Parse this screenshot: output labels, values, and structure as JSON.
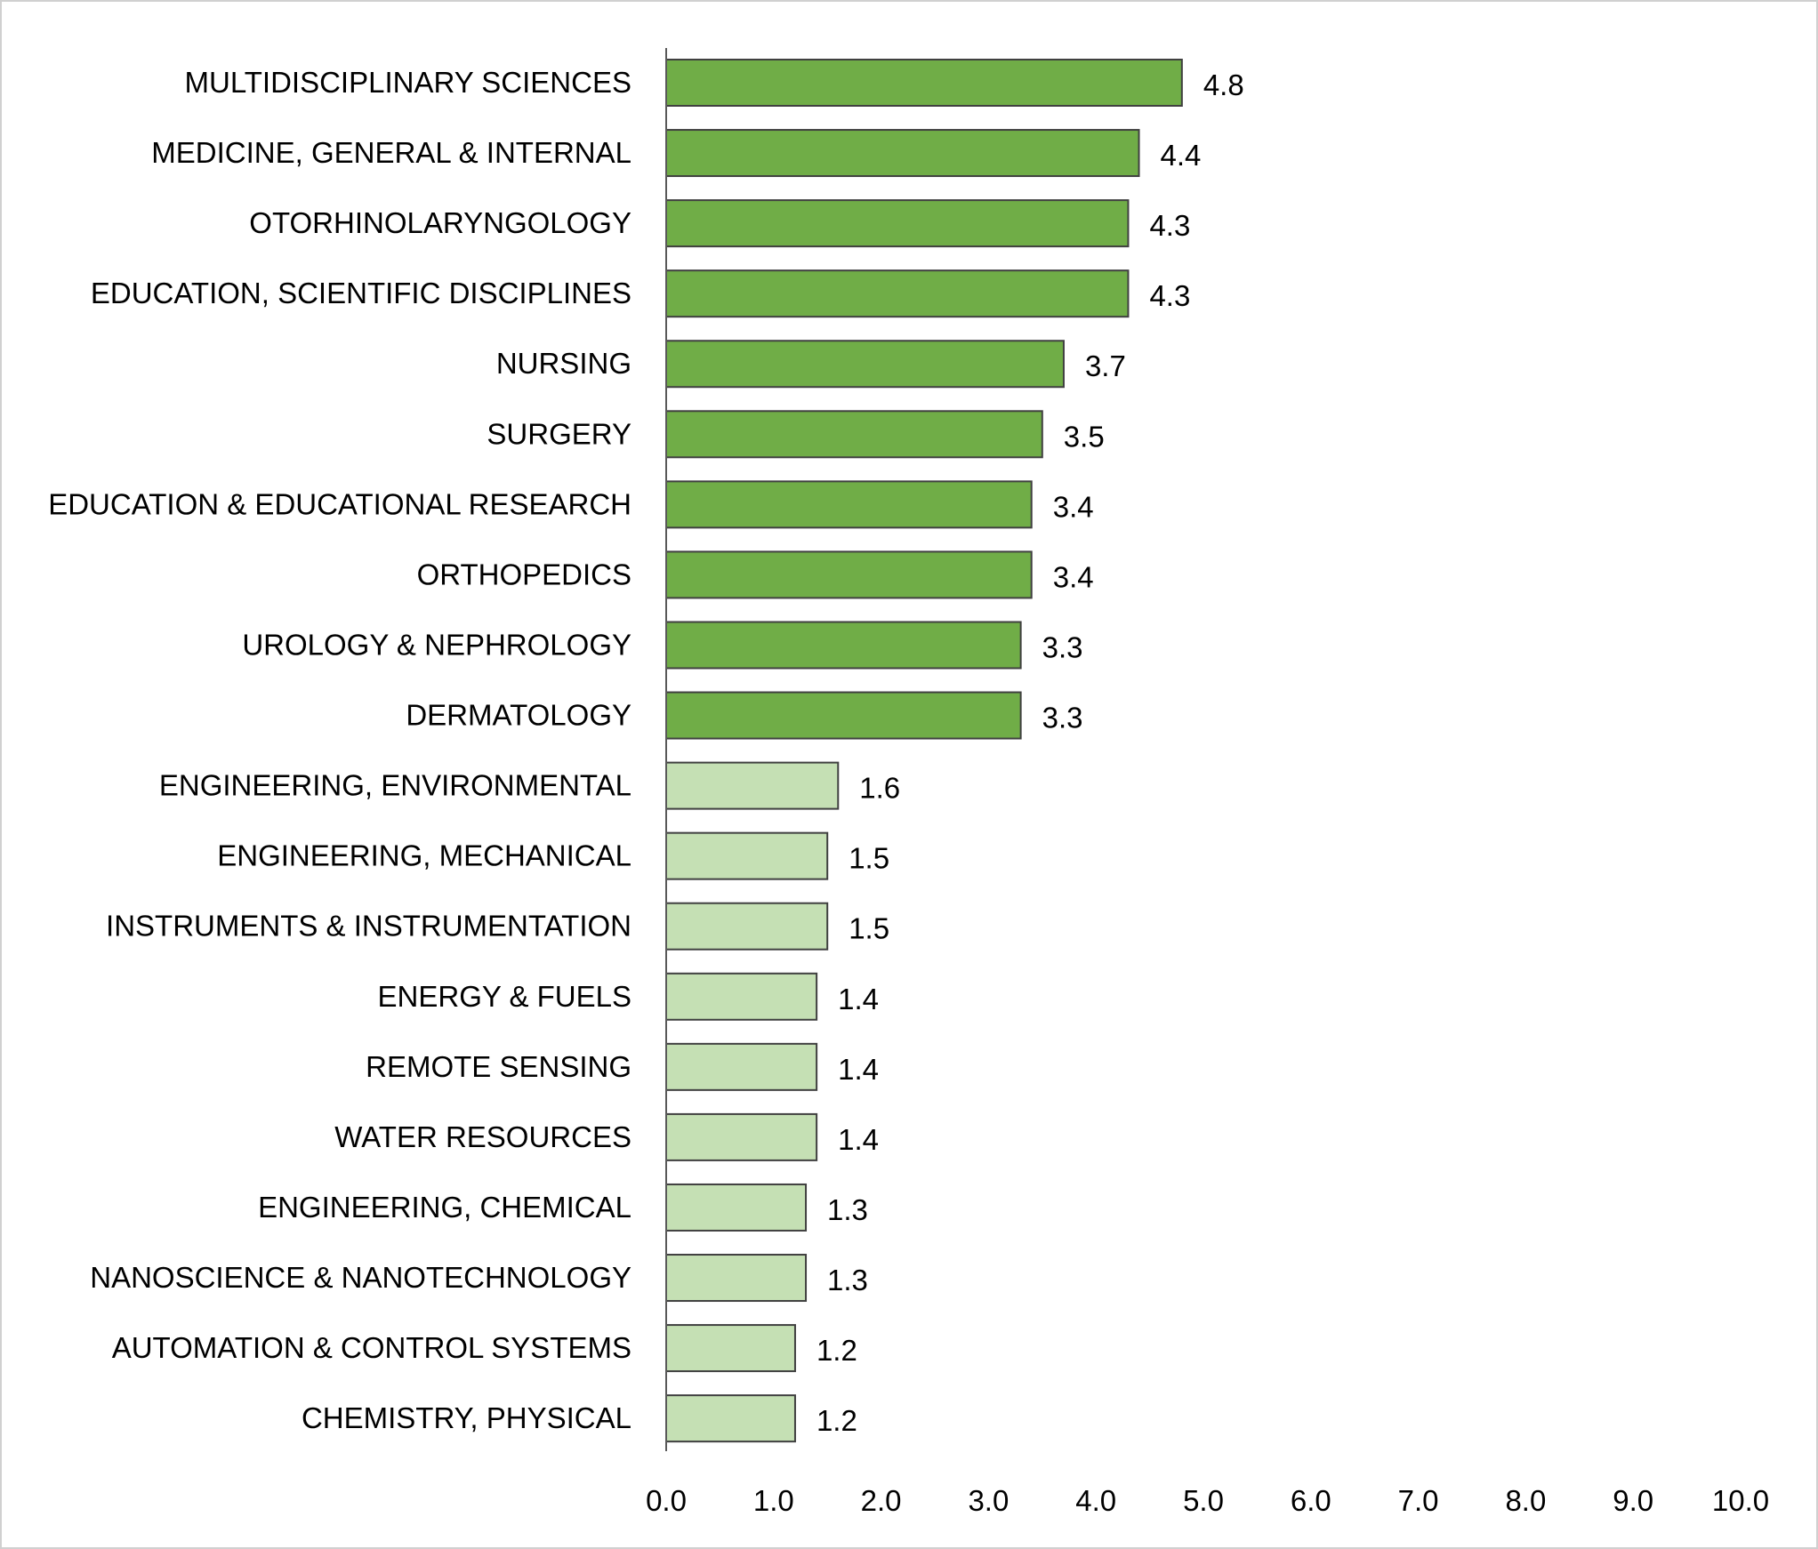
{
  "chart_data": {
    "type": "bar",
    "orientation": "horizontal",
    "title": "",
    "xlabel": "",
    "ylabel": "",
    "xlim": [
      0,
      10
    ],
    "x_ticks": [
      "0.0",
      "1.0",
      "2.0",
      "3.0",
      "4.0",
      "5.0",
      "6.0",
      "7.0",
      "8.0",
      "9.0",
      "10.0"
    ],
    "grid": false,
    "categories": [
      "MULTIDISCIPLINARY SCIENCES",
      "MEDICINE, GENERAL & INTERNAL",
      "OTORHINOLARYNGOLOGY",
      "EDUCATION, SCIENTIFIC DISCIPLINES",
      "NURSING",
      "SURGERY",
      "EDUCATION & EDUCATIONAL RESEARCH",
      "ORTHOPEDICS",
      "UROLOGY & NEPHROLOGY",
      "DERMATOLOGY",
      "ENGINEERING, ENVIRONMENTAL",
      "ENGINEERING, MECHANICAL",
      "INSTRUMENTS & INSTRUMENTATION",
      "ENERGY & FUELS",
      "REMOTE SENSING",
      "WATER RESOURCES",
      "ENGINEERING, CHEMICAL",
      "NANOSCIENCE & NANOTECHNOLOGY",
      "AUTOMATION & CONTROL SYSTEMS",
      "CHEMISTRY, PHYSICAL"
    ],
    "values": [
      4.8,
      4.4,
      4.3,
      4.3,
      3.7,
      3.5,
      3.4,
      3.4,
      3.3,
      3.3,
      1.6,
      1.5,
      1.5,
      1.4,
      1.4,
      1.4,
      1.3,
      1.3,
      1.2,
      1.2
    ],
    "value_labels": [
      "4.8",
      "4.4",
      "4.3",
      "4.3",
      "3.7",
      "3.5",
      "3.4",
      "3.4",
      "3.3",
      "3.3",
      "1.6",
      "1.5",
      "1.5",
      "1.4",
      "1.4",
      "1.4",
      "1.3",
      "1.3",
      "1.2",
      "1.2"
    ],
    "group": [
      "high",
      "high",
      "high",
      "high",
      "high",
      "high",
      "high",
      "high",
      "high",
      "high",
      "low",
      "low",
      "low",
      "low",
      "low",
      "low",
      "low",
      "low",
      "low",
      "low"
    ],
    "colors": {
      "high": "#70AD47",
      "low": "#C5E0B4",
      "outline": "#404040",
      "axis": "#595959"
    }
  }
}
